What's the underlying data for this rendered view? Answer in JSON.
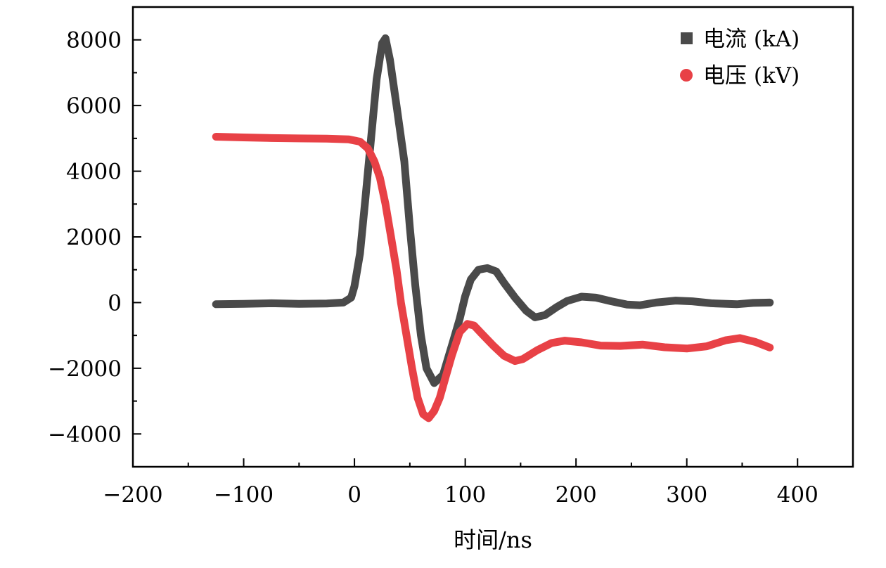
{
  "chart_data": {
    "type": "line",
    "title": "",
    "xlabel": "时间/ns",
    "ylabel": "",
    "xlim": [
      -200,
      450
    ],
    "ylim": [
      -5000,
      9000
    ],
    "x_ticks": [
      -200,
      -100,
      0,
      100,
      200,
      300,
      400
    ],
    "x_tick_labels": [
      "−200",
      "−100",
      "0",
      "100",
      "200",
      "300",
      "400"
    ],
    "y_ticks": [
      -4000,
      -2000,
      0,
      2000,
      4000,
      6000,
      8000
    ],
    "y_tick_labels": [
      "−4000",
      "−2000",
      "0",
      "2000",
      "4000",
      "6000",
      "8000"
    ],
    "grid": false,
    "legend_position": "top-right",
    "series": [
      {
        "name": "电流 (kA)",
        "color": "#4a4a4a",
        "marker": "square",
        "points": [
          [
            -125,
            -50
          ],
          [
            -100,
            -40
          ],
          [
            -75,
            -20
          ],
          [
            -50,
            -40
          ],
          [
            -25,
            -30
          ],
          [
            -10,
            0
          ],
          [
            -3,
            150
          ],
          [
            0,
            500
          ],
          [
            5,
            1500
          ],
          [
            10,
            3200
          ],
          [
            15,
            5000
          ],
          [
            20,
            6800
          ],
          [
            25,
            7900
          ],
          [
            28,
            8050
          ],
          [
            32,
            7400
          ],
          [
            38,
            6000
          ],
          [
            45,
            4300
          ],
          [
            50,
            2300
          ],
          [
            55,
            500
          ],
          [
            60,
            -1000
          ],
          [
            65,
            -2000
          ],
          [
            72,
            -2450
          ],
          [
            80,
            -2200
          ],
          [
            88,
            -1300
          ],
          [
            95,
            -500
          ],
          [
            100,
            200
          ],
          [
            105,
            700
          ],
          [
            112,
            1000
          ],
          [
            120,
            1050
          ],
          [
            128,
            950
          ],
          [
            135,
            600
          ],
          [
            145,
            150
          ],
          [
            155,
            -250
          ],
          [
            163,
            -450
          ],
          [
            172,
            -380
          ],
          [
            182,
            -150
          ],
          [
            192,
            50
          ],
          [
            205,
            180
          ],
          [
            218,
            150
          ],
          [
            232,
            40
          ],
          [
            246,
            -60
          ],
          [
            258,
            -80
          ],
          [
            272,
            0
          ],
          [
            290,
            60
          ],
          [
            305,
            40
          ],
          [
            322,
            -20
          ],
          [
            345,
            -50
          ],
          [
            360,
            -10
          ],
          [
            375,
            0
          ]
        ]
      },
      {
        "name": "电压 (kV)",
        "color": "#e84146",
        "marker": "circle",
        "points": [
          [
            -125,
            5050
          ],
          [
            -100,
            5030
          ],
          [
            -75,
            5010
          ],
          [
            -50,
            5000
          ],
          [
            -25,
            4990
          ],
          [
            -5,
            4970
          ],
          [
            5,
            4900
          ],
          [
            12,
            4700
          ],
          [
            18,
            4300
          ],
          [
            23,
            3800
          ],
          [
            28,
            3000
          ],
          [
            33,
            2000
          ],
          [
            38,
            1000
          ],
          [
            42,
            0
          ],
          [
            47,
            -1000
          ],
          [
            52,
            -2000
          ],
          [
            57,
            -2900
          ],
          [
            62,
            -3400
          ],
          [
            67,
            -3520
          ],
          [
            72,
            -3300
          ],
          [
            77,
            -2900
          ],
          [
            82,
            -2300
          ],
          [
            88,
            -1600
          ],
          [
            95,
            -900
          ],
          [
            102,
            -650
          ],
          [
            108,
            -700
          ],
          [
            115,
            -950
          ],
          [
            125,
            -1300
          ],
          [
            135,
            -1620
          ],
          [
            145,
            -1780
          ],
          [
            152,
            -1720
          ],
          [
            165,
            -1450
          ],
          [
            178,
            -1230
          ],
          [
            190,
            -1160
          ],
          [
            205,
            -1210
          ],
          [
            222,
            -1310
          ],
          [
            240,
            -1320
          ],
          [
            260,
            -1280
          ],
          [
            280,
            -1360
          ],
          [
            300,
            -1400
          ],
          [
            318,
            -1330
          ],
          [
            335,
            -1150
          ],
          [
            348,
            -1080
          ],
          [
            362,
            -1200
          ],
          [
            375,
            -1370
          ]
        ]
      }
    ]
  }
}
